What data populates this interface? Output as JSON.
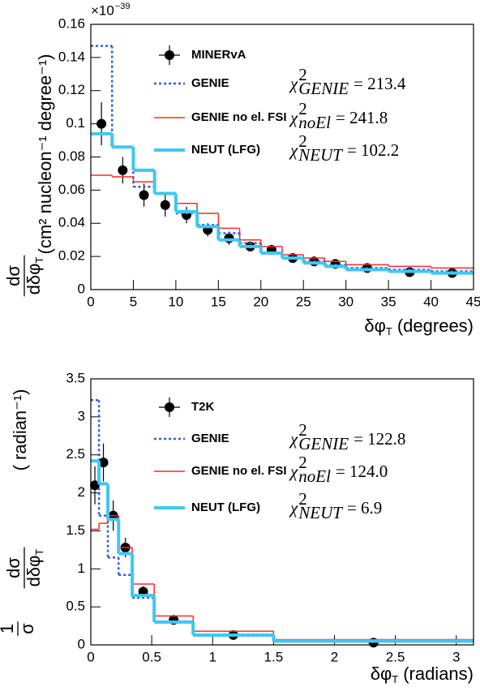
{
  "chart_data": [
    {
      "type": "histogram",
      "multiplier": {
        "base": "×10",
        "exponent": "−39"
      },
      "ylabel": {
        "fractions": [
          [
            "dσ",
            "dδφ"
          ]
        ],
        "subscript": "T",
        "units": "(cm² nucleon⁻¹ degree⁻¹)"
      },
      "xlabel": {
        "text": "δφ",
        "subscript": "T",
        "units": "(degrees)"
      },
      "xlim": [
        0,
        45
      ],
      "ylim": [
        0,
        0.16
      ],
      "xticks": [
        0,
        5,
        10,
        15,
        20,
        25,
        30,
        35,
        40,
        45
      ],
      "yticks": [
        0,
        0.02,
        0.04,
        0.06,
        0.08,
        0.1,
        0.12,
        0.14,
        0.16
      ],
      "bins": [
        0,
        2.5,
        5,
        7.5,
        10,
        12.5,
        15,
        17.5,
        20,
        22.5,
        25,
        27.5,
        30,
        35,
        40,
        45
      ],
      "series": [
        {
          "name": "MINERvA",
          "style": "points",
          "color": "#000000",
          "values": [
            0.1,
            0.072,
            0.057,
            0.051,
            0.045,
            0.036,
            0.031,
            0.026,
            0.024,
            0.019,
            0.017,
            0.0155,
            0.013,
            0.0105,
            0.01
          ],
          "errors": [
            0.013,
            0.008,
            0.007,
            0.007,
            0.005,
            0.004,
            0.004,
            0.003,
            0.003,
            0.002,
            0.002,
            0.002,
            0.0015,
            0.0015,
            0.0015
          ]
        },
        {
          "name": "GENIE",
          "style": "dotted",
          "color": "#2e5fe0",
          "values": [
            0.147,
            0.086,
            0.062,
            0.058,
            0.046,
            0.039,
            0.034,
            0.028,
            0.022,
            0.019,
            0.017,
            0.015,
            0.013,
            0.012,
            0.011
          ]
        },
        {
          "name": "GENIE no el. FSI",
          "style": "thin",
          "color": "#ff2a2a",
          "values": [
            0.069,
            0.068,
            0.065,
            0.058,
            0.052,
            0.046,
            0.037,
            0.03,
            0.026,
            0.021,
            0.019,
            0.017,
            0.015,
            0.014,
            0.013
          ]
        },
        {
          "name": "NEUT (LFG)",
          "style": "thick",
          "color": "#3ec8f2",
          "values": [
            0.094,
            0.086,
            0.072,
            0.058,
            0.047,
            0.038,
            0.03,
            0.026,
            0.022,
            0.019,
            0.016,
            0.014,
            0.012,
            0.011,
            0.01
          ]
        }
      ],
      "annotations": [
        {
          "symbol": "χ",
          "superscript": "2",
          "subscript": "GENIE",
          "text": "= 213.4"
        },
        {
          "symbol": "χ",
          "superscript": "2",
          "subscript": "noEl",
          "text": "= 241.8"
        },
        {
          "symbol": "χ",
          "superscript": "2",
          "subscript": "NEUT",
          "text": "= 102.2"
        }
      ]
    },
    {
      "type": "histogram",
      "ylabel": {
        "fractions": [
          [
            "1",
            "σ"
          ],
          [
            "dσ",
            "dδφ"
          ]
        ],
        "subscript": "T",
        "units": "( radian⁻¹)"
      },
      "xlabel": {
        "text": "δφ",
        "subscript": "T",
        "units": "(radians)"
      },
      "xlim": [
        0,
        3.1416
      ],
      "ylim": [
        0,
        3.5
      ],
      "xticks": [
        0,
        0.5,
        1,
        1.5,
        2,
        2.5,
        3
      ],
      "yticks": [
        0,
        0.5,
        1,
        1.5,
        2,
        2.5,
        3,
        3.5
      ],
      "bins": [
        0,
        0.067,
        0.14,
        0.228,
        0.34,
        0.52,
        0.84,
        1.5,
        3.1416
      ],
      "series": [
        {
          "name": "T2K",
          "style": "points",
          "color": "#000000",
          "values": [
            2.1,
            2.4,
            1.7,
            1.28,
            0.7,
            0.33,
            0.13,
            0.03
          ],
          "errors": [
            0.25,
            0.25,
            0.2,
            0.13,
            0.07,
            0.03,
            0.02,
            0.01
          ]
        },
        {
          "name": "GENIE",
          "style": "dotted",
          "color": "#2e5fe0",
          "values": [
            3.22,
            1.7,
            1.15,
            0.92,
            0.62,
            0.31,
            0.12,
            0.05
          ]
        },
        {
          "name": "GENIE no el. FSI",
          "style": "thin",
          "color": "#ff2a2a",
          "values": [
            1.52,
            1.6,
            1.7,
            1.28,
            0.8,
            0.38,
            0.18,
            0.07
          ]
        },
        {
          "name": "NEUT (LFG)",
          "style": "thick",
          "color": "#3ec8f2",
          "values": [
            2.42,
            2.12,
            1.65,
            1.2,
            0.65,
            0.3,
            0.13,
            0.05
          ]
        }
      ],
      "annotations": [
        {
          "symbol": "χ",
          "superscript": "2",
          "subscript": "GENIE",
          "text": "= 122.8"
        },
        {
          "symbol": "χ",
          "superscript": "2",
          "subscript": "noEl",
          "text": "= 124.0"
        },
        {
          "symbol": "χ",
          "superscript": "2",
          "subscript": "NEUT",
          "text": "= 6.9"
        }
      ]
    }
  ]
}
